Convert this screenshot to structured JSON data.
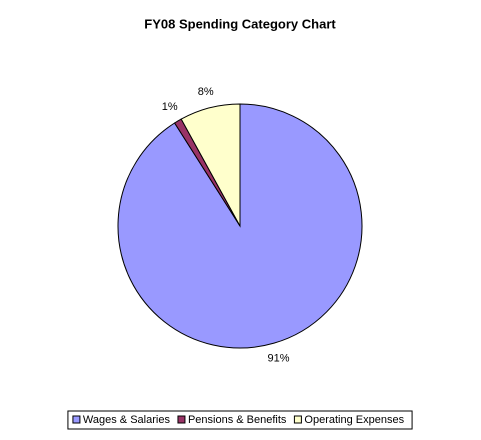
{
  "chart_data": {
    "type": "pie",
    "title": "FY08 Spending Category Chart",
    "categories": [
      "Wages & Salaries",
      "Pensions & Benefits",
      "Operating Expenses"
    ],
    "values": [
      91,
      1,
      8
    ],
    "value_labels": [
      "91%",
      "1%",
      "8%"
    ],
    "colors": [
      "#9999ff",
      "#993366",
      "#ffffcc"
    ],
    "legend": "bottom"
  }
}
